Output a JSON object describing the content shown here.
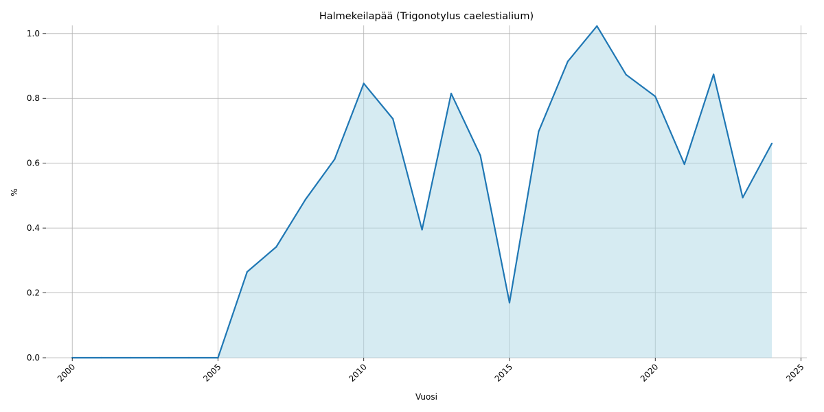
{
  "chart_data": {
    "type": "area",
    "title": "Halmekeilapää (Trigonotylus caelestialium)",
    "xlabel": "Vuosi",
    "ylabel": "%",
    "xlim": [
      1999.1,
      2025.2
    ],
    "ylim": [
      0,
      1.025
    ],
    "xticks": [
      2000,
      2005,
      2010,
      2015,
      2020,
      2025
    ],
    "yticks": [
      0.0,
      0.2,
      0.4,
      0.6,
      0.8,
      1.0
    ],
    "xtick_labels": [
      "2000",
      "2005",
      "2010",
      "2015",
      "2020",
      "2025"
    ],
    "ytick_labels": [
      "0.0",
      "0.2",
      "0.4",
      "0.6",
      "0.8",
      "1.0"
    ],
    "grid": true,
    "line_color": "#1f77b4",
    "fill_color": "#add8e6",
    "x": [
      2000,
      2001,
      2002,
      2003,
      2004,
      2005,
      2006,
      2007,
      2008,
      2009,
      2010,
      2011,
      2012,
      2013,
      2014,
      2015,
      2016,
      2017,
      2018,
      2019,
      2020,
      2021,
      2022,
      2023,
      2024
    ],
    "y": [
      0,
      0,
      0,
      0,
      0,
      0,
      0.265,
      0.342,
      0.488,
      0.612,
      0.846,
      0.737,
      0.395,
      0.815,
      0.624,
      0.17,
      0.698,
      0.914,
      1.023,
      0.873,
      0.806,
      0.597,
      0.874,
      0.494,
      0.661
    ]
  }
}
